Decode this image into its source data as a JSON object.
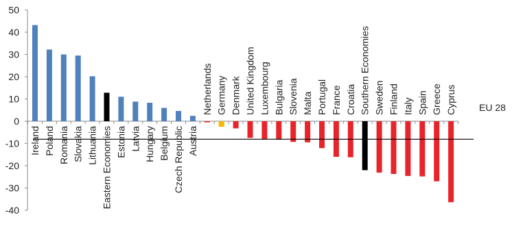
{
  "chart_data": {
    "type": "bar",
    "title": "",
    "xlabel": "",
    "ylabel": "",
    "ylim": [
      -40,
      50
    ],
    "yticks": [
      50,
      40,
      30,
      20,
      10,
      0,
      -10,
      -20,
      -30,
      -40
    ],
    "grid": false,
    "legend": "none",
    "categories": [
      "Ireland",
      "Poland",
      "Romania",
      "Slovakia",
      "Lithuania",
      "Eastern Economies",
      "Estonia",
      "Latvia",
      "Hungary",
      "Belgium",
      "Czech Republic",
      "Austria",
      "Netherlands",
      "Germany",
      "Denmark",
      "United Kingdom",
      "Luxembourg",
      "Bulgaria",
      "Slovenia",
      "Malta",
      "Portugal",
      "France",
      "Croatia",
      "Southern Economies",
      "Sweden",
      "Finland",
      "Italy",
      "Spain",
      "Greece",
      "Cyprus"
    ],
    "values": [
      43.2,
      32.2,
      30.0,
      29.5,
      20.2,
      12.8,
      11.0,
      8.8,
      8.3,
      6.0,
      4.6,
      2.4,
      -0.5,
      -2.5,
      -3.2,
      -7.5,
      -8.1,
      -8.3,
      -9.3,
      -9.5,
      -12.1,
      -16.0,
      -16.2,
      -22.0,
      -23.1,
      -23.7,
      -24.6,
      -24.8,
      -27.0,
      -36.4
    ],
    "colors": [
      "#4f81bd",
      "#4f81bd",
      "#4f81bd",
      "#4f81bd",
      "#4f81bd",
      "#000000",
      "#4f81bd",
      "#4f81bd",
      "#4f81bd",
      "#4f81bd",
      "#4f81bd",
      "#4f81bd",
      "#e8242b",
      "#f5b800",
      "#e8242b",
      "#e8242b",
      "#e8242b",
      "#e8242b",
      "#e8242b",
      "#e8242b",
      "#e8242b",
      "#e8242b",
      "#e8242b",
      "#000000",
      "#e8242b",
      "#e8242b",
      "#e8242b",
      "#e8242b",
      "#e8242b",
      "#e8242b"
    ],
    "reference_line": {
      "label": "EU 28",
      "value": -8.1,
      "color": "#000000"
    }
  }
}
